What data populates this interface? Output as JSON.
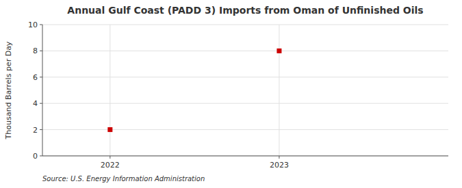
{
  "chart_data": {
    "type": "scatter",
    "title": "Annual Gulf Coast (PADD 3) Imports from Oman of Unfinished Oils",
    "ylabel": "Thousand Barrels per Day",
    "annotations": [
      "Source: U.S. Energy Information Administration"
    ],
    "x": [
      2022,
      2023
    ],
    "values": [
      2,
      8
    ],
    "color": "#cc0000",
    "marker": "square",
    "xlim": [
      2021.6,
      2024.0
    ],
    "xticks": [
      2022,
      2023
    ],
    "ylim": [
      0,
      10
    ],
    "yticks": [
      0,
      2,
      4,
      6,
      8,
      10
    ],
    "grid": true
  }
}
